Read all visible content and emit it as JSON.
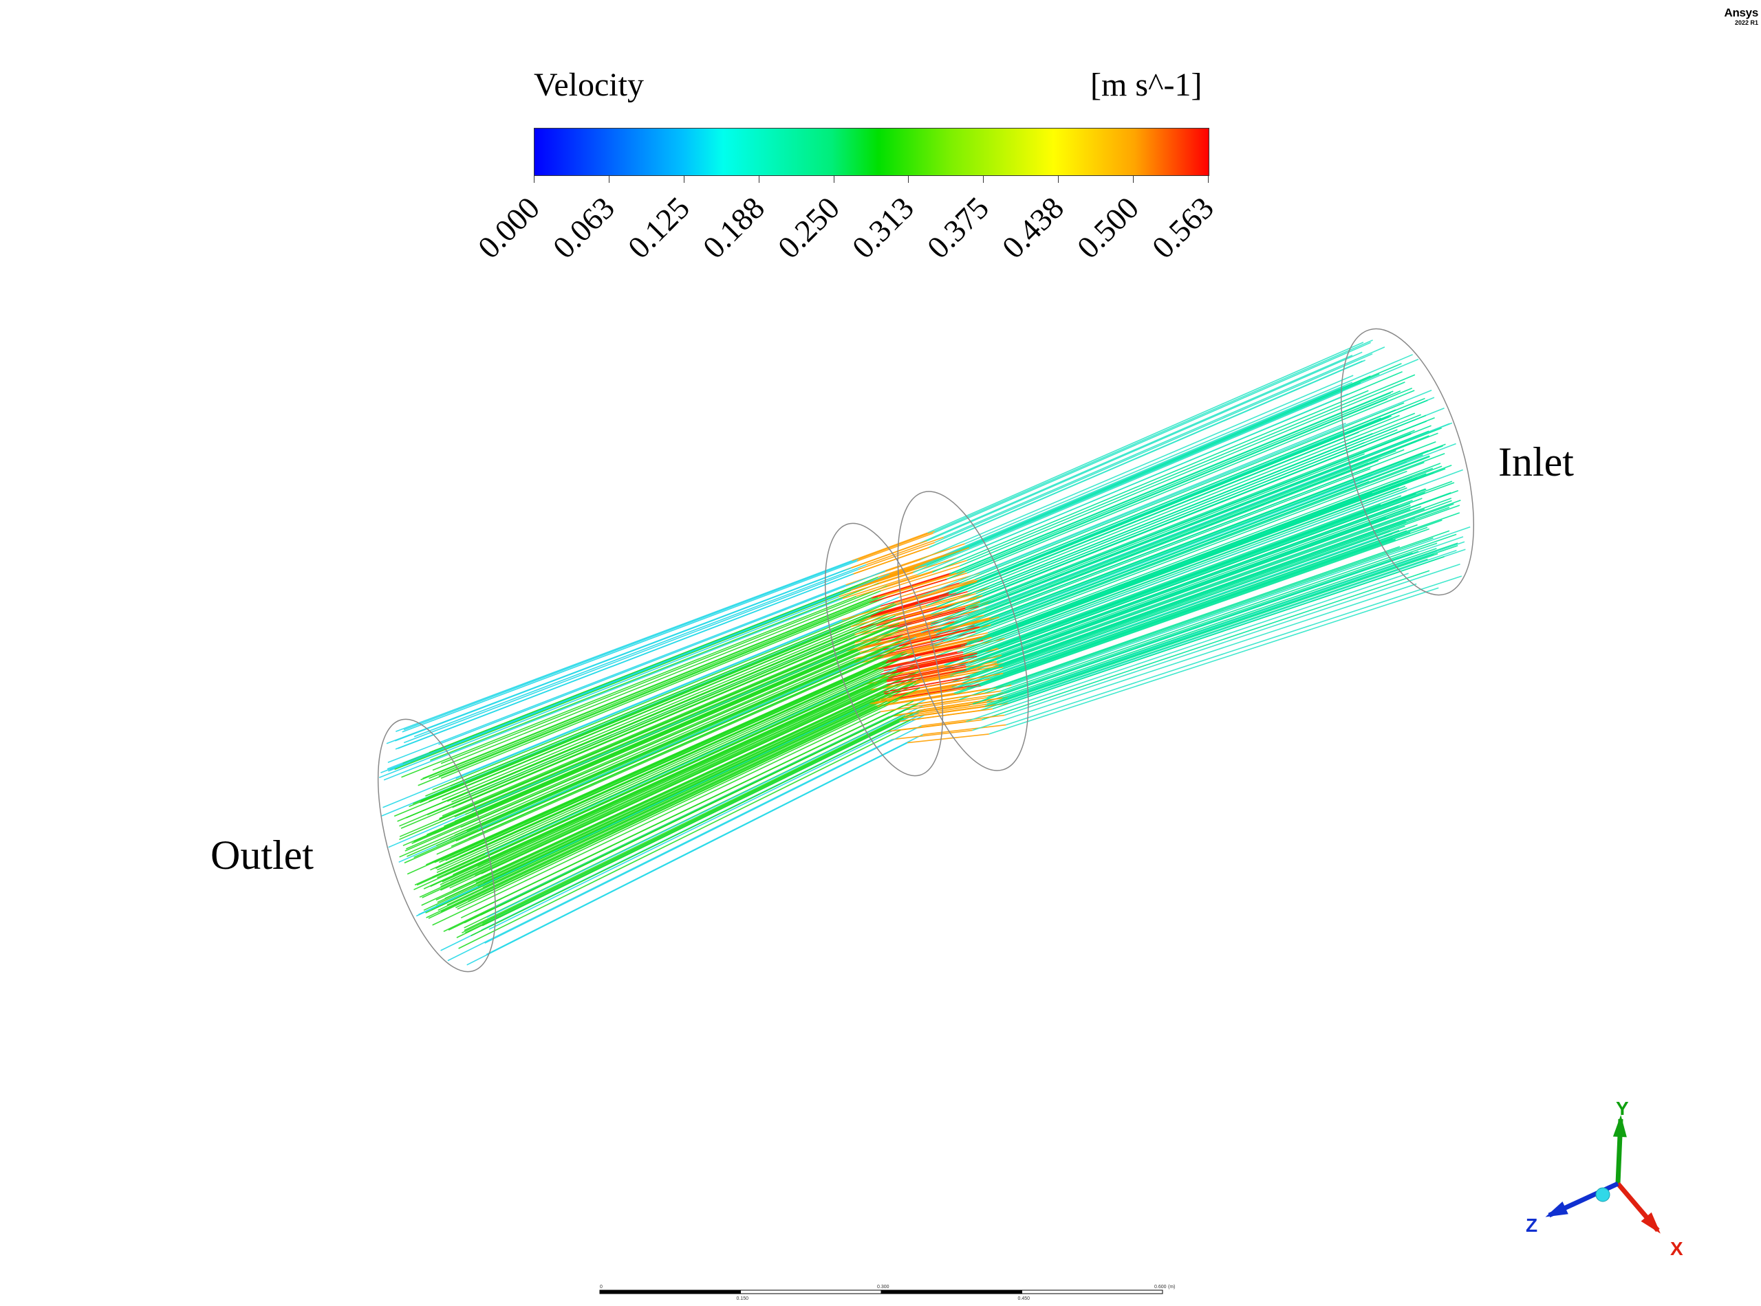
{
  "brand": {
    "name": "Ansys",
    "version": "2022 R1"
  },
  "legend": {
    "title": "Velocity",
    "unit": "[m s^-1]",
    "ticks": [
      "0.000",
      "0.063",
      "0.125",
      "0.188",
      "0.250",
      "0.313",
      "0.375",
      "0.438",
      "0.500",
      "0.563"
    ],
    "colors": [
      "#0000ff",
      "#00c0ff",
      "#00ffee",
      "#00ee7a",
      "#00e000",
      "#7ff000",
      "#ffff00",
      "#ffa500",
      "#ff0000"
    ]
  },
  "labels": {
    "outlet": "Outlet",
    "inlet": "Inlet"
  },
  "axes": {
    "x": "X",
    "y": "Y",
    "z": "Z",
    "x_color": "#e02010",
    "y_color": "#10a010",
    "z_color": "#1030d0"
  },
  "scale_bar": {
    "start": "0",
    "mid_upper": "0.300",
    "end": "0.600",
    "unit": "(m)",
    "lower_1": "0.150",
    "lower_2": "0.450"
  },
  "streamline_colors": {
    "inlet": "#00e59a",
    "core": "#22dd22",
    "edge": "#22d8e8",
    "throat_hot": "#ff2000",
    "throat_warm": "#ffa000"
  }
}
